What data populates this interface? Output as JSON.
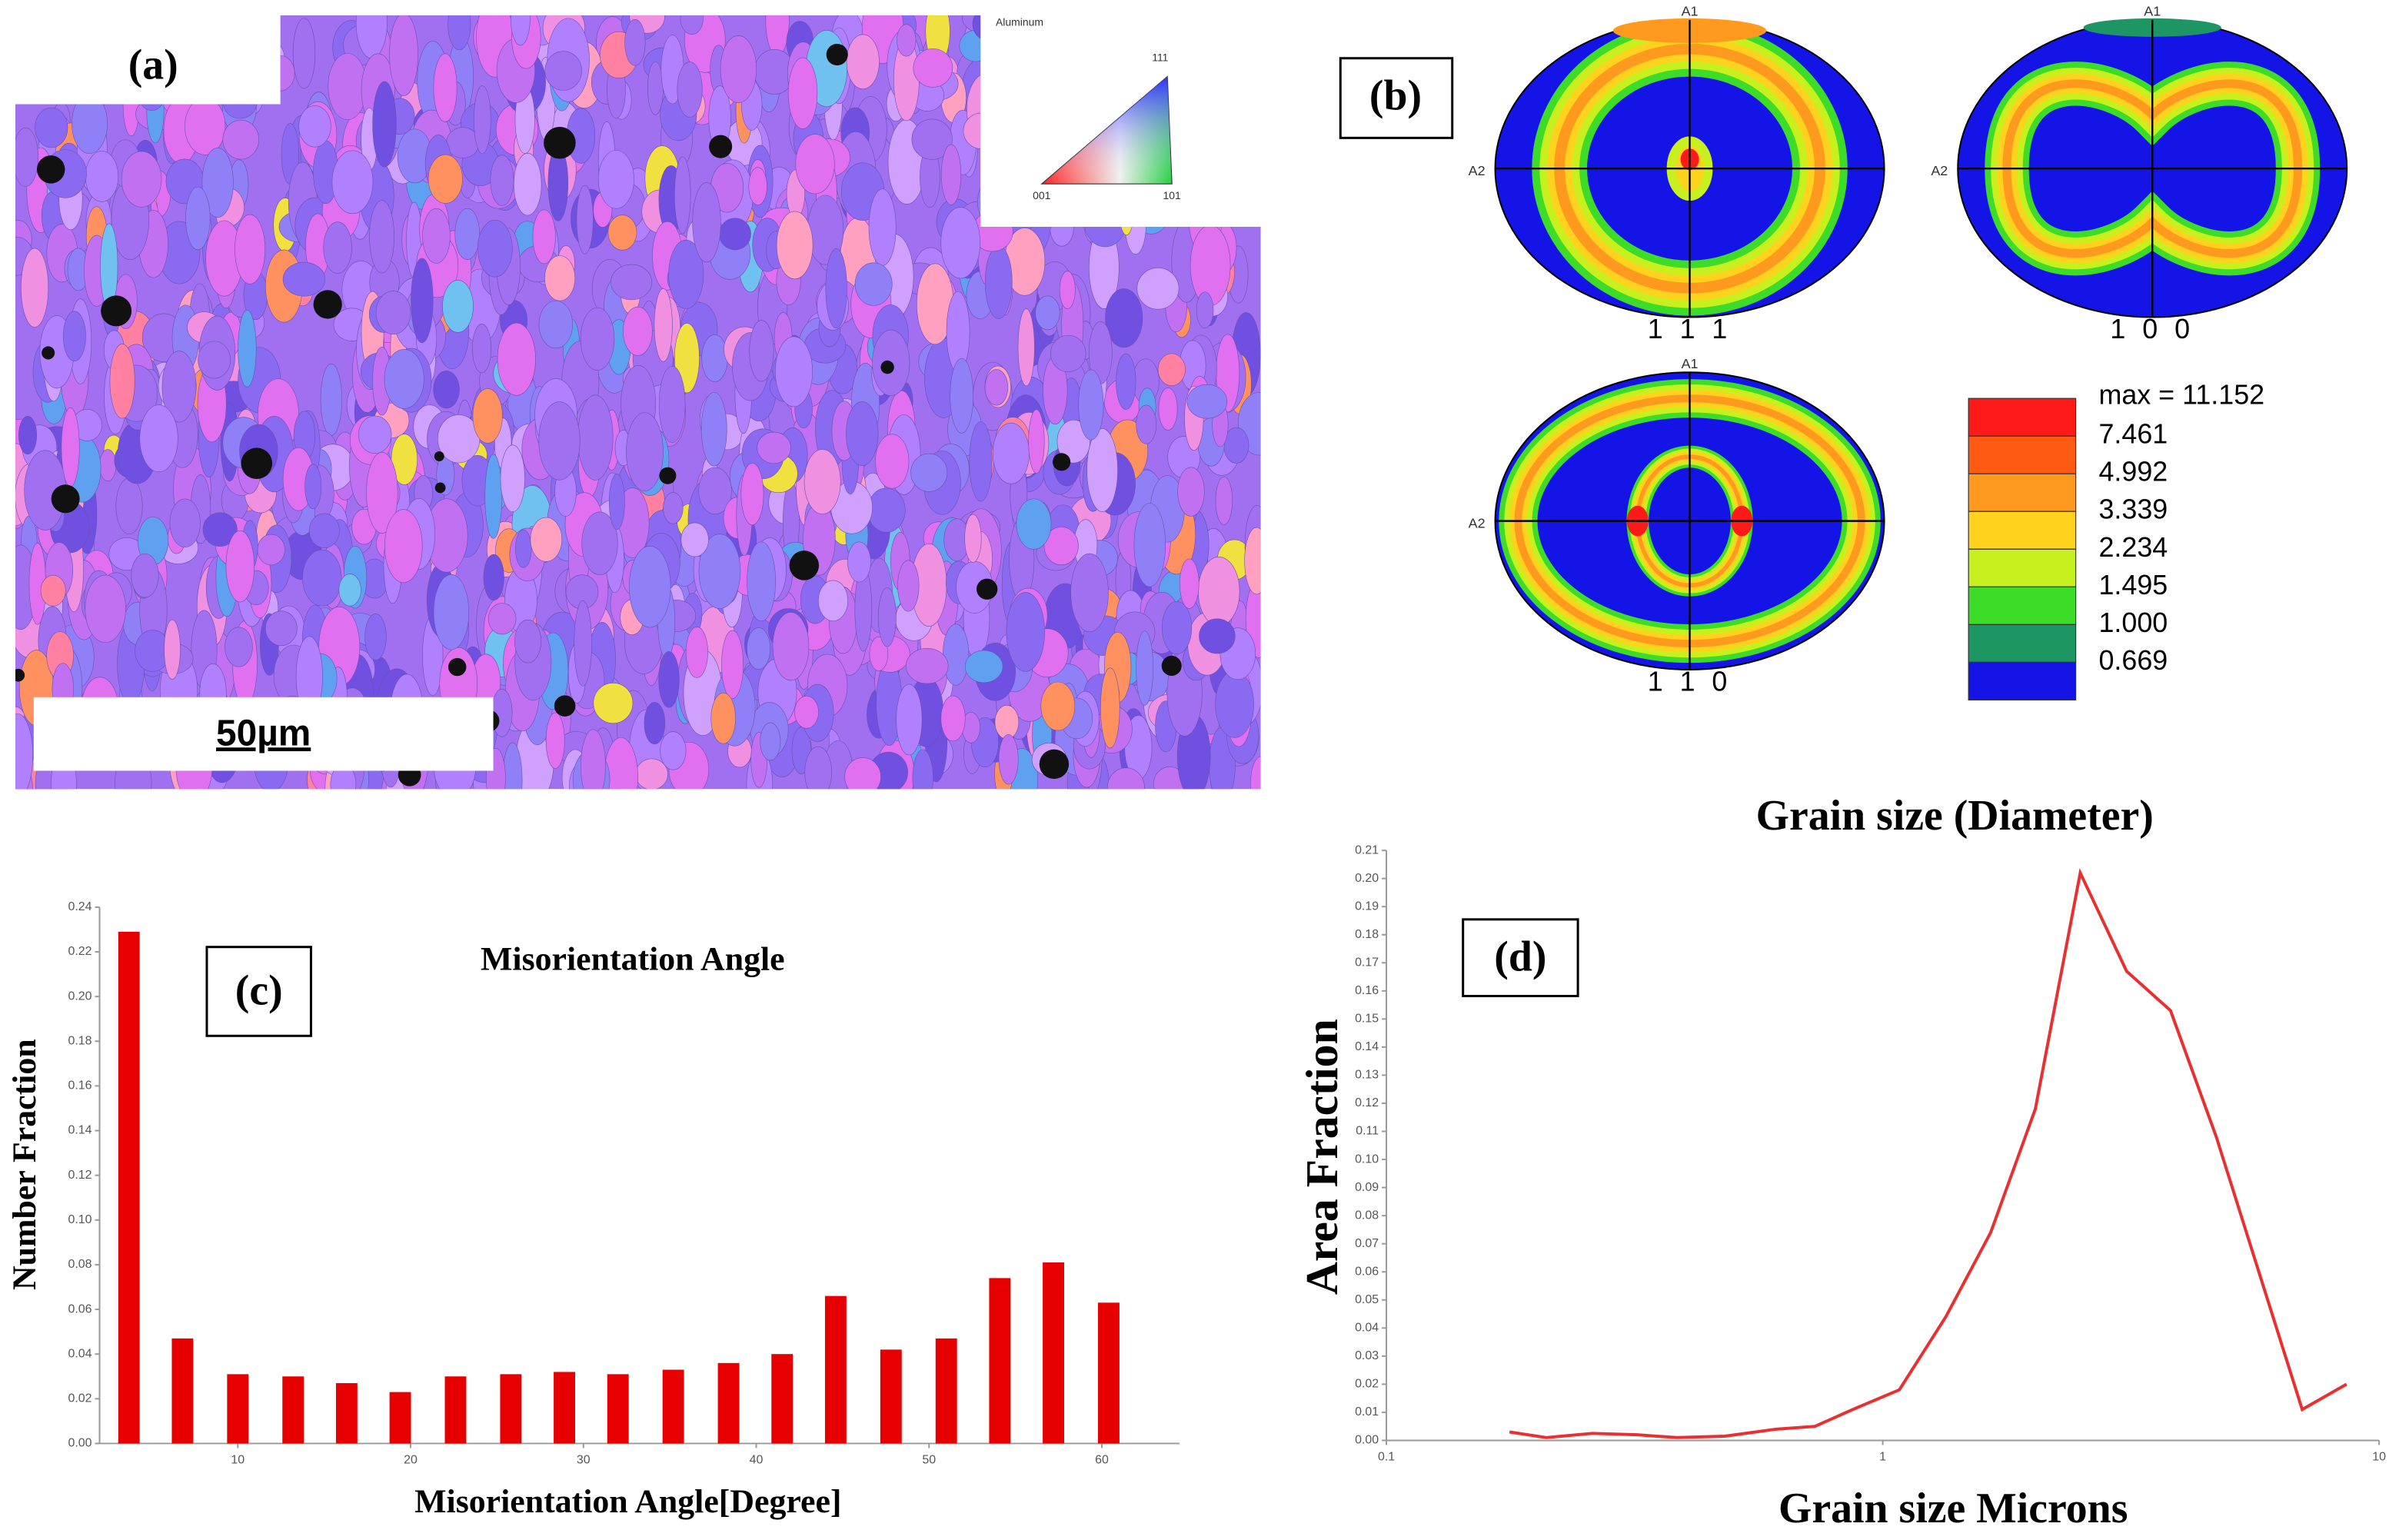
{
  "panels": {
    "a": {
      "label": "(a)",
      "scale_bar": "50µm",
      "ipf_title": "Aluminum",
      "ipf_corners": [
        "111",
        "001",
        "101"
      ]
    },
    "b": {
      "label": "(b)",
      "axis_labels": [
        "A1",
        "A2"
      ],
      "pole_figures": [
        "1 1 1",
        "1 0 0",
        "1 1 0"
      ],
      "legend_max": "max = 11.152",
      "legend_levels": [
        "7.461",
        "4.992",
        "3.339",
        "2.234",
        "1.495",
        "1.000",
        "0.669"
      ],
      "legend_colors": [
        "#ff1a1a",
        "#ff5a14",
        "#ff9a1e",
        "#ffd21e",
        "#c8f01e",
        "#3cdc28",
        "#1e9664",
        "#1414e6"
      ]
    }
  },
  "chart_data": [
    {
      "type": "bar",
      "label": "(c)",
      "title": "Misorientation Angle",
      "x_label": "Misorientation Angle[Degree]",
      "y_label": "Number Fraction",
      "color": "#e60000",
      "x": [
        3.7,
        6.8,
        10.0,
        13.2,
        16.3,
        19.4,
        22.6,
        25.8,
        28.9,
        32.0,
        35.2,
        38.4,
        41.5,
        44.6,
        47.8,
        51.0,
        54.1,
        57.2,
        60.4
      ],
      "values": [
        0.229,
        0.047,
        0.031,
        0.03,
        0.027,
        0.023,
        0.03,
        0.031,
        0.032,
        0.031,
        0.033,
        0.036,
        0.04,
        0.066,
        0.042,
        0.047,
        0.074,
        0.081,
        0.063
      ],
      "xlim": [
        2,
        64.5
      ],
      "xticks": [
        10,
        20,
        30,
        40,
        50,
        60
      ],
      "ylim": [
        0,
        0.24
      ],
      "yticks": [
        {
          "value": 0,
          "label": "0.00"
        },
        0.02,
        0.04,
        0.06,
        0.08,
        {
          "value": 0.1,
          "label": "0.10"
        },
        0.12,
        0.14,
        0.16,
        0.18,
        {
          "value": 0.2,
          "label": "0.20"
        },
        0.22,
        0.24
      ]
    },
    {
      "type": "line",
      "label": "(d)",
      "title": "Grain size (Diameter)",
      "x_label": "Grain size Microns",
      "y_label": "Area Fraction",
      "color": "#e83030",
      "xscale": "log",
      "x": [
        0.177,
        0.21,
        0.26,
        0.32,
        0.385,
        0.48,
        0.61,
        0.73,
        0.87,
        1.08,
        1.34,
        1.65,
        2.03,
        2.5,
        3.1,
        3.8,
        4.7,
        7.0,
        8.6
      ],
      "values": [
        0.003,
        0.001,
        0.0025,
        0.002,
        0.001,
        0.0015,
        0.004,
        0.005,
        0.011,
        0.018,
        0.044,
        0.074,
        0.118,
        0.202,
        0.167,
        0.153,
        0.108,
        0.011,
        0.02
      ],
      "xlim": [
        0.1,
        10
      ],
      "xticks": [
        0.1,
        1,
        10
      ],
      "ylim": [
        0,
        0.21
      ],
      "yticks": [
        {
          "value": 0,
          "label": "0.00"
        },
        0.01,
        0.02,
        0.03,
        0.04,
        0.05,
        0.06,
        0.07,
        0.08,
        0.09,
        {
          "value": 0.1,
          "label": "0.10"
        },
        0.11,
        0.12,
        0.13,
        0.14,
        0.15,
        0.16,
        0.17,
        0.18,
        0.19,
        {
          "value": 0.2,
          "label": "0.20"
        },
        0.21
      ]
    }
  ]
}
